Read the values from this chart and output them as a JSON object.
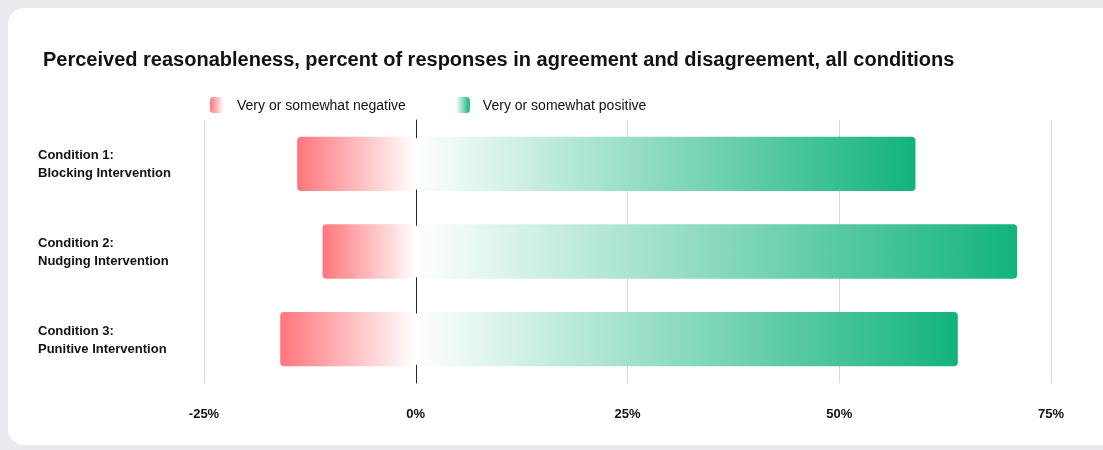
{
  "chart_data": {
    "type": "bar",
    "orientation": "horizontal",
    "stacked": true,
    "title": "Perceived reasonableness, percent of responses in agreement and disagreement, all conditions",
    "categories": [
      "Condition 1:\nBlocking Intervention",
      "Condition 2:\nNudging Intervention",
      "Condition 3:\nPunitive Intervention"
    ],
    "series": [
      {
        "name": "Very or somewhat negative",
        "color": "#ff767c",
        "values": [
          -14,
          -11,
          -16
        ]
      },
      {
        "name": "Very or somewhat positive",
        "color": "#12b37c",
        "values": [
          59,
          71,
          64
        ]
      }
    ],
    "xlim": [
      -25,
      75
    ],
    "xticks": [
      {
        "value": -25,
        "label": "-25%"
      },
      {
        "value": 0,
        "label": "0%"
      },
      {
        "value": 25,
        "label": "25%"
      },
      {
        "value": 50,
        "label": "50%"
      },
      {
        "value": 75,
        "label": "75%"
      }
    ],
    "grid": "x",
    "legend": "top left"
  }
}
